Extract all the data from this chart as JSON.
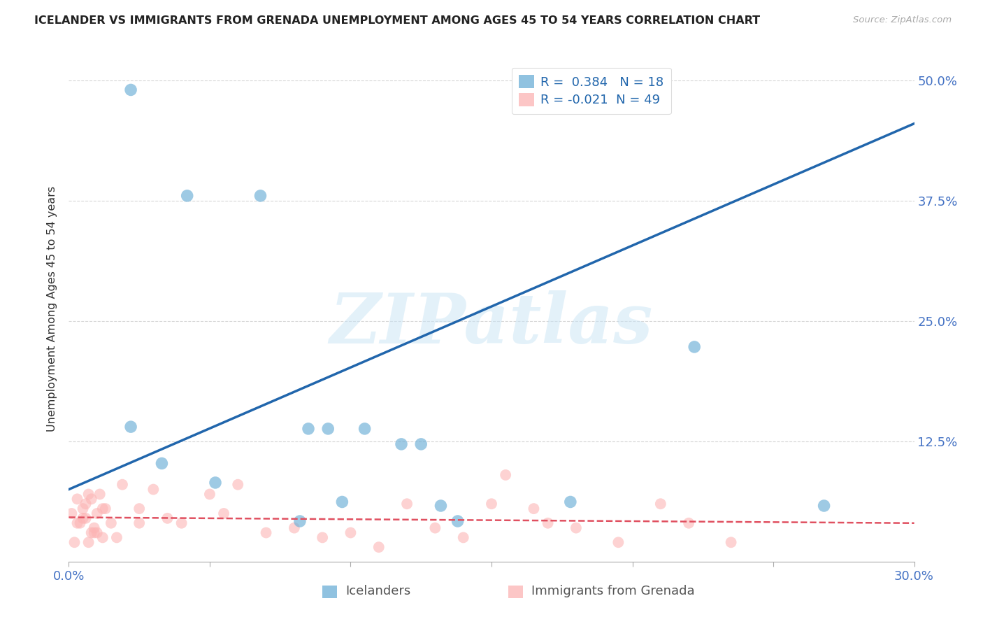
{
  "title": "ICELANDER VS IMMIGRANTS FROM GRENADA UNEMPLOYMENT AMONG AGES 45 TO 54 YEARS CORRELATION CHART",
  "source": "Source: ZipAtlas.com",
  "ylabel_label": "Unemployment Among Ages 45 to 54 years",
  "xlim": [
    0.0,
    0.3
  ],
  "ylim": [
    0.0,
    0.525
  ],
  "icelander_R": 0.384,
  "icelander_N": 18,
  "grenada_R": -0.021,
  "grenada_N": 49,
  "icelander_color": "#6baed6",
  "grenada_color": "#fcb4b4",
  "trendline_icelander_color": "#2166ac",
  "trendline_grenada_color": "#e05060",
  "watermark": "ZIPatlas",
  "icelander_x": [
    0.022,
    0.042,
    0.068,
    0.022,
    0.033,
    0.052,
    0.085,
    0.092,
    0.105,
    0.118,
    0.125,
    0.132,
    0.097,
    0.178,
    0.222,
    0.268,
    0.082,
    0.138
  ],
  "icelander_y": [
    0.49,
    0.38,
    0.38,
    0.14,
    0.102,
    0.082,
    0.138,
    0.138,
    0.138,
    0.122,
    0.122,
    0.058,
    0.062,
    0.062,
    0.223,
    0.058,
    0.042,
    0.042
  ],
  "grenada_x": [
    0.002,
    0.004,
    0.006,
    0.008,
    0.01,
    0.012,
    0.003,
    0.005,
    0.007,
    0.009,
    0.011,
    0.001,
    0.003,
    0.005,
    0.007,
    0.009,
    0.013,
    0.015,
    0.017,
    0.019,
    0.006,
    0.008,
    0.01,
    0.012,
    0.025,
    0.03,
    0.04,
    0.05,
    0.06,
    0.07,
    0.08,
    0.09,
    0.1,
    0.11,
    0.12,
    0.13,
    0.14,
    0.155,
    0.165,
    0.18,
    0.195,
    0.21,
    0.22,
    0.235,
    0.15,
    0.17,
    0.025,
    0.035,
    0.055
  ],
  "grenada_y": [
    0.02,
    0.04,
    0.06,
    0.03,
    0.05,
    0.025,
    0.04,
    0.055,
    0.02,
    0.035,
    0.07,
    0.05,
    0.065,
    0.045,
    0.07,
    0.03,
    0.055,
    0.04,
    0.025,
    0.08,
    0.045,
    0.065,
    0.03,
    0.055,
    0.04,
    0.075,
    0.04,
    0.07,
    0.08,
    0.03,
    0.035,
    0.025,
    0.03,
    0.015,
    0.06,
    0.035,
    0.025,
    0.09,
    0.055,
    0.035,
    0.02,
    0.06,
    0.04,
    0.02,
    0.06,
    0.04,
    0.055,
    0.045,
    0.05
  ],
  "trendline_ice_x0": 0.0,
  "trendline_ice_y0": 0.075,
  "trendline_ice_x1": 0.3,
  "trendline_ice_y1": 0.455,
  "trendline_gren_x0": 0.0,
  "trendline_gren_y0": 0.046,
  "trendline_gren_x1": 0.3,
  "trendline_gren_y1": 0.04
}
